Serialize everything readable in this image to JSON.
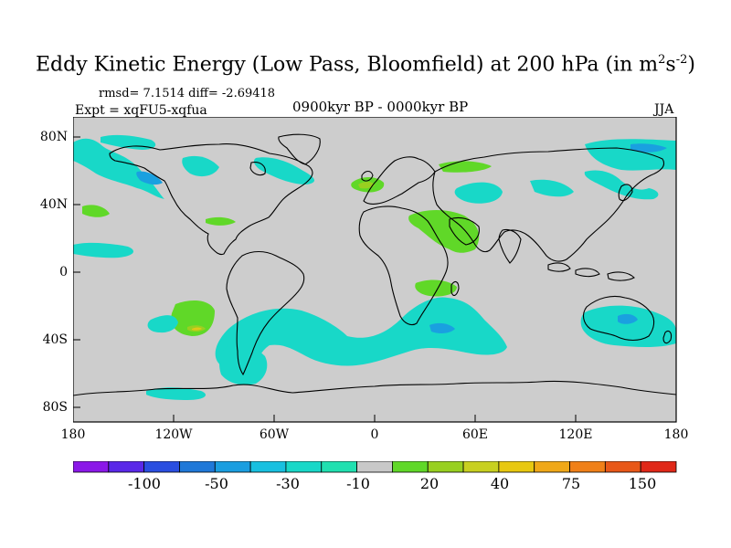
{
  "title": {
    "main": "Eddy Kinetic Energy (Low Pass, Bloomfield) at 200 hPa (in m",
    "sup1": "2",
    "mid": "s",
    "sup2": "-2",
    "end": ")"
  },
  "stats": "rmsd= 7.1514 diff= -2.69418",
  "expt": "Expt = xqFU5-xqfua",
  "period": "0900kyr BP - 0000kyr BP",
  "season": "JJA",
  "axes": {
    "x_ticks": [
      "180",
      "120W",
      "60W",
      "0",
      "60E",
      "120E",
      "180"
    ],
    "y_ticks": [
      "80N",
      "40N",
      "0",
      "40S",
      "80S"
    ]
  },
  "colorbar": {
    "colors": [
      "#8b18e8",
      "#5a28e8",
      "#2a4ee0",
      "#1f78d8",
      "#1a9ee0",
      "#18c0e0",
      "#18d8c8",
      "#20e0b0",
      "#c8c8c8",
      "#60d828",
      "#98d020",
      "#c8d020",
      "#e8c810",
      "#f0a818",
      "#f08018",
      "#e85818",
      "#e02818"
    ],
    "labels": [
      "-100",
      "-50",
      "-30",
      "-10",
      "20",
      "40",
      "75",
      "150"
    ]
  },
  "palette": {
    "land_bg": "#cdcdcd",
    "neg_cyan": "#18d8c8",
    "neg_blue": "#1aa0e0",
    "pos_green": "#60d828",
    "pos_lime": "#98d020",
    "pos_yellow": "#e0c818"
  }
}
